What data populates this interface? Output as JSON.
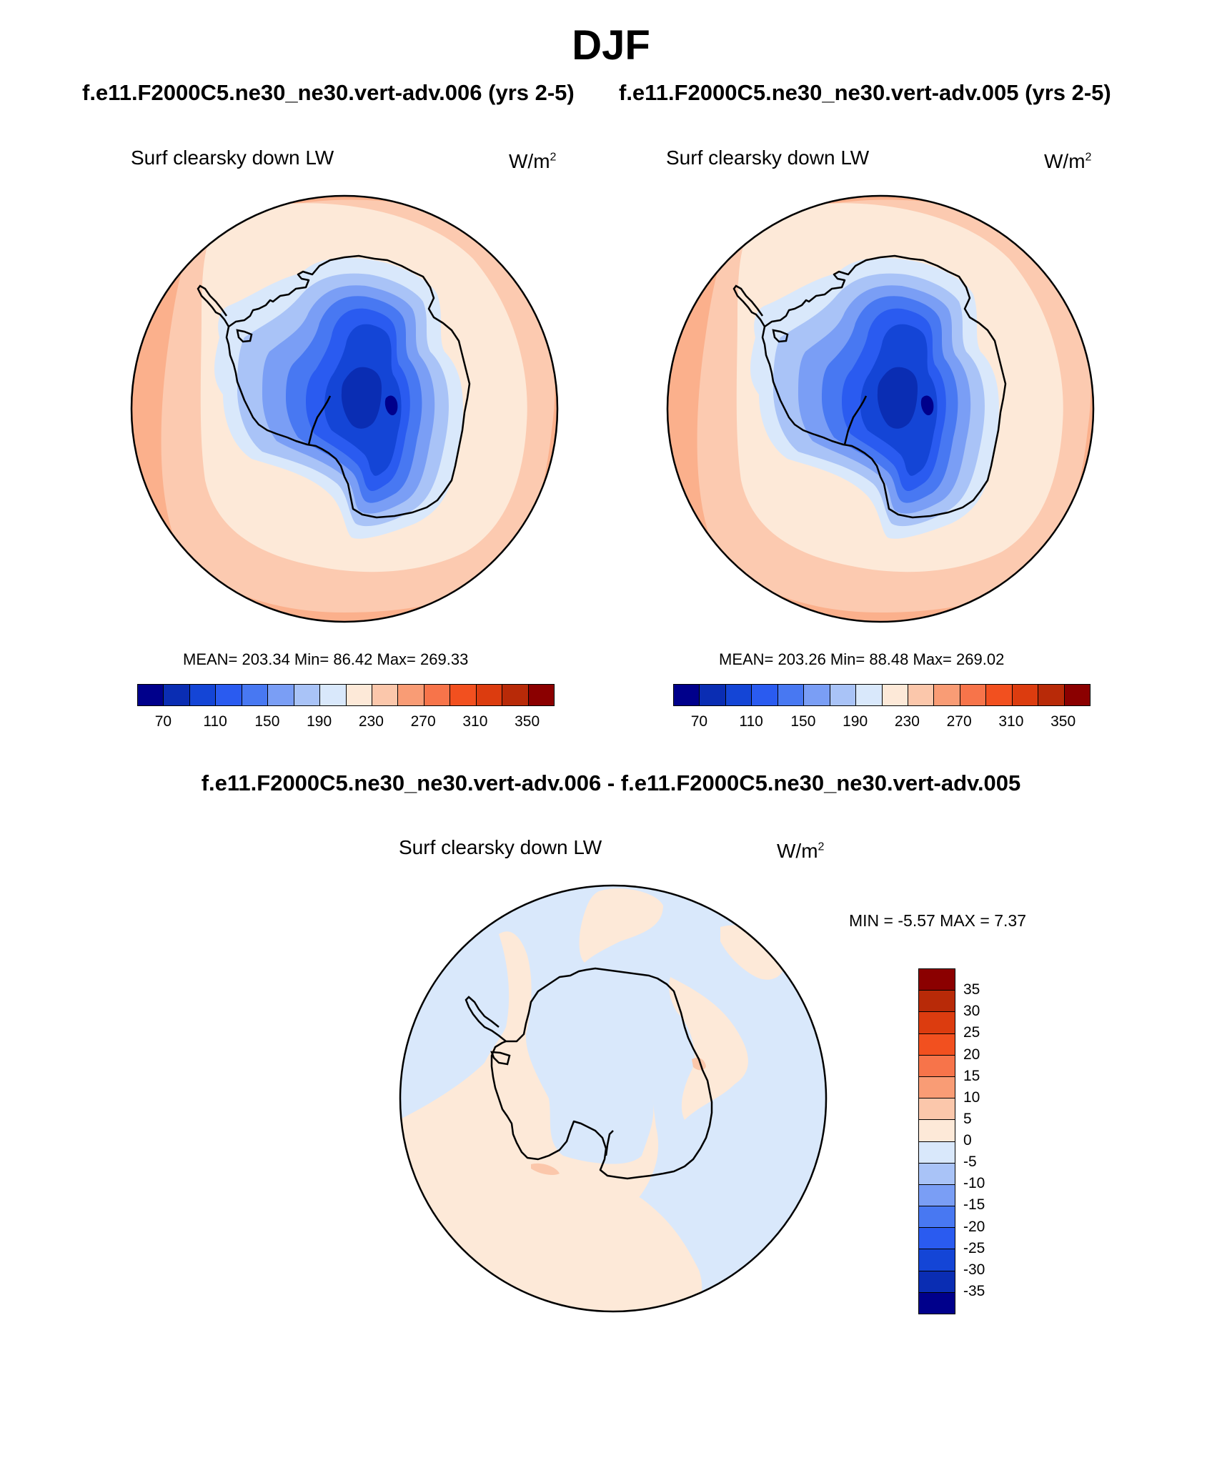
{
  "title": "DJF",
  "panels": [
    {
      "case_title": "f.e11.F2000C5.ne30_ne30.vert-adv.006 (yrs 2-5)",
      "variable": "Surf clearsky down LW",
      "units": "W/m",
      "units_exp": "2",
      "stats": "MEAN= 203.34  Min=  86.42  Max= 269.33"
    },
    {
      "case_title": "f.e11.F2000C5.ne30_ne30.vert-adv.005 (yrs 2-5)",
      "variable": "Surf clearsky down LW",
      "units": "W/m",
      "units_exp": "2",
      "stats": "MEAN= 203.26  Min=  88.48  Max= 269.02"
    }
  ],
  "diff_panel": {
    "case_title": "f.e11.F2000C5.ne30_ne30.vert-adv.006 - f.e11.F2000C5.ne30_ne30.vert-adv.005",
    "variable": "Surf clearsky down LW",
    "units": "W/m",
    "units_exp": "2",
    "minmax": "MIN =  -5.57 MAX =   7.37"
  },
  "colorbar_main": {
    "colors": [
      "#00008b",
      "#0a2db3",
      "#1445d6",
      "#2a5bf0",
      "#4878f2",
      "#7a9ef5",
      "#a9c3f7",
      "#d9e8fb",
      "#fde9d8",
      "#fbc7ab",
      "#f99c75",
      "#f7744a",
      "#f2501f",
      "#dc3c0f",
      "#b82a08",
      "#8b0000"
    ],
    "tick_labels": [
      "70",
      "110",
      "150",
      "190",
      "230",
      "270",
      "310",
      "350"
    ],
    "tick_boundaries": [
      1,
      3,
      5,
      7,
      9,
      11,
      13,
      15
    ]
  },
  "colorbar_diff": {
    "colors": [
      "#8b0000",
      "#b82a08",
      "#dc3c0f",
      "#f2501f",
      "#f7744a",
      "#f99c75",
      "#fbc7ab",
      "#fde9d8",
      "#d9e8fb",
      "#a9c3f7",
      "#7a9ef5",
      "#4878f2",
      "#2a5bf0",
      "#1445d6",
      "#0a2db3",
      "#00008b"
    ],
    "tick_labels": [
      "35",
      "30",
      "25",
      "20",
      "15",
      "10",
      "5",
      "0",
      "-5",
      "-10",
      "-15",
      "-20",
      "-25",
      "-30",
      "-35"
    ]
  },
  "map_colors": {
    "ring_outer": "#fbb08c",
    "ring_mid": "#fccab0",
    "ocean": "#fde9d8",
    "shelf": "#d9e8fb",
    "ice_edge": "#a9c3f7",
    "ice_1": "#7a9ef5",
    "ice_2": "#4878f2",
    "ice_3": "#2a5bf0",
    "ice_4": "#1445d6",
    "ice_core": "#0a2db3",
    "ice_min": "#00008b",
    "diff_pos": "#fde9d8",
    "diff_neg": "#d9e8fb",
    "diff_hot": "#fbc7ab"
  }
}
